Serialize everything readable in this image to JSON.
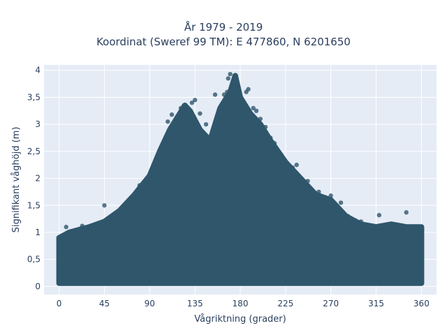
{
  "chart_data": {
    "type": "scatter",
    "title_line1": "År 1979 - 2019",
    "title_line2": "Koordinat (Sweref 99 TM): E 477860, N 6201650",
    "xlabel": "Vågriktning (grader)",
    "ylabel": "Signifikant våghöjd (m)",
    "xlim": [
      -15,
      375
    ],
    "ylim": [
      -0.15,
      4.1
    ],
    "x_ticks": [
      0,
      45,
      90,
      135,
      180,
      225,
      270,
      315,
      360
    ],
    "x_tick_labels": [
      "0",
      "45",
      "90",
      "135",
      "180",
      "225",
      "270",
      "315",
      "360"
    ],
    "y_ticks": [
      0,
      0.5,
      1,
      1.5,
      2,
      2.5,
      3,
      3.5,
      4
    ],
    "y_tick_labels": [
      "0",
      "0,5",
      "1",
      "1,5",
      "2",
      "2,5",
      "3",
      "3,5",
      "4"
    ],
    "grid": true,
    "plot_bgcolor": "#e5ecf6",
    "marker_color": "#2f566b",
    "upper_envelope": {
      "x": [
        0,
        10,
        20,
        30,
        45,
        60,
        75,
        90,
        100,
        110,
        120,
        125,
        130,
        140,
        150,
        160,
        170,
        175,
        180,
        190,
        200,
        210,
        225,
        240,
        255,
        270,
        285,
        300,
        315,
        330,
        345,
        360
      ],
      "y": [
        0.9,
        1.0,
        1.05,
        1.1,
        1.2,
        1.4,
        1.7,
        2.05,
        2.5,
        2.9,
        3.2,
        3.35,
        3.25,
        2.9,
        2.7,
        3.3,
        3.6,
        3.9,
        3.5,
        3.2,
        3.0,
        2.7,
        2.3,
        2.0,
        1.7,
        1.6,
        1.3,
        1.15,
        1.1,
        1.15,
        1.1,
        1.1
      ]
    },
    "points": [
      {
        "x": 7,
        "y": 1.1
      },
      {
        "x": 23,
        "y": 1.12
      },
      {
        "x": 45,
        "y": 1.5
      },
      {
        "x": 52,
        "y": 1.2
      },
      {
        "x": 65,
        "y": 1.45
      },
      {
        "x": 71,
        "y": 1.6
      },
      {
        "x": 80,
        "y": 1.87
      },
      {
        "x": 84,
        "y": 1.75
      },
      {
        "x": 92,
        "y": 1.95
      },
      {
        "x": 96,
        "y": 2.25
      },
      {
        "x": 100,
        "y": 2.35
      },
      {
        "x": 104,
        "y": 2.65
      },
      {
        "x": 108,
        "y": 3.05
      },
      {
        "x": 112,
        "y": 3.18
      },
      {
        "x": 118,
        "y": 3.1
      },
      {
        "x": 121,
        "y": 3.3
      },
      {
        "x": 124,
        "y": 3.35
      },
      {
        "x": 127,
        "y": 3.25
      },
      {
        "x": 132,
        "y": 3.4
      },
      {
        "x": 135,
        "y": 3.45
      },
      {
        "x": 140,
        "y": 3.2
      },
      {
        "x": 146,
        "y": 3.0
      },
      {
        "x": 155,
        "y": 3.55
      },
      {
        "x": 160,
        "y": 3.3
      },
      {
        "x": 164,
        "y": 3.55
      },
      {
        "x": 167,
        "y": 3.6
      },
      {
        "x": 168,
        "y": 3.85
      },
      {
        "x": 170,
        "y": 3.93
      },
      {
        "x": 173,
        "y": 3.5
      },
      {
        "x": 176,
        "y": 3.75
      },
      {
        "x": 178,
        "y": 3.55
      },
      {
        "x": 183,
        "y": 3.2
      },
      {
        "x": 186,
        "y": 3.6
      },
      {
        "x": 188,
        "y": 3.65
      },
      {
        "x": 193,
        "y": 3.3
      },
      {
        "x": 196,
        "y": 3.25
      },
      {
        "x": 200,
        "y": 3.1
      },
      {
        "x": 205,
        "y": 2.95
      },
      {
        "x": 210,
        "y": 2.75
      },
      {
        "x": 214,
        "y": 2.65
      },
      {
        "x": 220,
        "y": 2.45
      },
      {
        "x": 225,
        "y": 2.3
      },
      {
        "x": 232,
        "y": 2.2
      },
      {
        "x": 236,
        "y": 2.25
      },
      {
        "x": 247,
        "y": 1.95
      },
      {
        "x": 258,
        "y": 1.75
      },
      {
        "x": 262,
        "y": 1.6
      },
      {
        "x": 270,
        "y": 1.68
      },
      {
        "x": 280,
        "y": 1.55
      },
      {
        "x": 287,
        "y": 1.3
      },
      {
        "x": 300,
        "y": 1.2
      },
      {
        "x": 318,
        "y": 1.32
      },
      {
        "x": 330,
        "y": 1.12
      },
      {
        "x": 337,
        "y": 1.08
      },
      {
        "x": 345,
        "y": 1.37
      },
      {
        "x": 355,
        "y": 1.1
      }
    ]
  }
}
